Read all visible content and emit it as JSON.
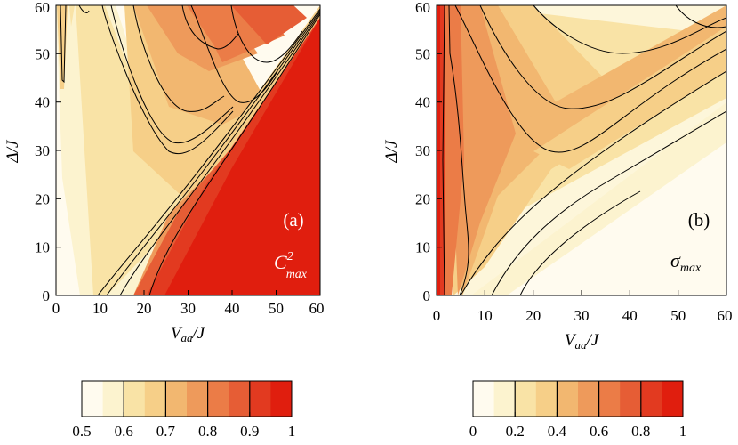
{
  "chart_data": [
    {
      "type": "heatmap",
      "panel_label": "(a)",
      "quantity_label": "C²max",
      "quantity_symbol": "C",
      "quantity_superscript": "2",
      "quantity_subscript": "max",
      "xlabel_symbol": "V",
      "xlabel_subscript": "aa",
      "xlabel_suffix": "/J",
      "ylabel": "Δ/J",
      "xlim": [
        0,
        60
      ],
      "ylim": [
        0,
        60
      ],
      "xticks": [
        "0",
        "10",
        "20",
        "30",
        "40",
        "50",
        "60"
      ],
      "yticks": [
        "0",
        "10",
        "20",
        "30",
        "40",
        "50",
        "60"
      ],
      "description_of_field": "value ≈ 1 (deep red) in the region below the line Δ ≈ V_aa − 20; banded ridges of 0.6–0.9 above it; ≈ 0.5 in the upper-left",
      "colorbar": {
        "ticks": [
          "0.5",
          "0.6",
          "0.7",
          "0.8",
          "0.9",
          "1"
        ],
        "range": [
          0.5,
          1.0
        ],
        "levels": 10,
        "contour_lines": [
          0.6,
          0.7,
          0.8,
          0.9
        ]
      }
    },
    {
      "type": "heatmap",
      "panel_label": "(b)",
      "quantity_label": "σmax",
      "quantity_symbol": "σ",
      "quantity_subscript": "max",
      "xlabel_symbol": "V",
      "xlabel_subscript": "aa",
      "xlabel_suffix": "/J",
      "ylabel": "Δ/J",
      "xlim": [
        0,
        60
      ],
      "ylim": [
        0,
        60
      ],
      "xticks": [
        "0",
        "10",
        "20",
        "30",
        "40",
        "50",
        "60"
      ],
      "yticks": [
        "0",
        "10",
        "20",
        "30",
        "40",
        "50",
        "60"
      ],
      "description_of_field": "value ≈ 1 (red) along V_aa ≈ 0; orange wedge bands radiating from lower left; ≈ 0.1 in lower right",
      "colorbar": {
        "ticks": [
          "0",
          "0.2",
          "0.4",
          "0.6",
          "0.8",
          "1"
        ],
        "range": [
          0,
          1.0
        ],
        "levels": 10,
        "contour_lines": [
          0.2,
          0.4,
          0.6,
          0.8
        ]
      }
    }
  ],
  "palette": [
    "#fffbef",
    "#fcf3cf",
    "#f9e3a6",
    "#f6cf88",
    "#f2b770",
    "#ee9a5b",
    "#eb7c47",
    "#e65d35",
    "#e23a20",
    "#e01e0e"
  ]
}
